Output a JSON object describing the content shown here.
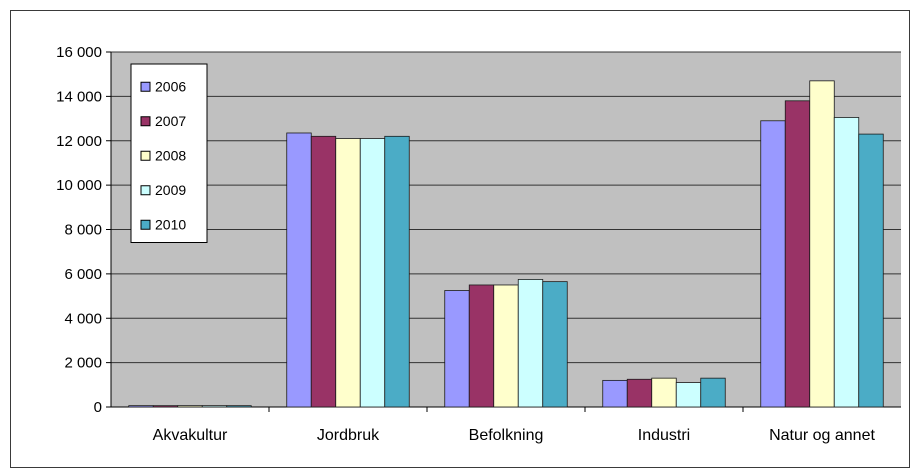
{
  "chart_data": {
    "type": "bar",
    "categories": [
      "Akvakultur",
      "Jordbruk",
      "Befolkning",
      "Industri",
      "Natur og annet"
    ],
    "series": [
      {
        "name": "2006",
        "values": [
          60,
          12350,
          5250,
          1200,
          12900
        ]
      },
      {
        "name": "2007",
        "values": [
          60,
          12200,
          5500,
          1250,
          13800
        ]
      },
      {
        "name": "2008",
        "values": [
          60,
          12100,
          5500,
          1300,
          14700
        ]
      },
      {
        "name": "2009",
        "values": [
          60,
          12100,
          5750,
          1100,
          13050
        ]
      },
      {
        "name": "2010",
        "values": [
          60,
          12200,
          5650,
          1300,
          12300
        ]
      }
    ],
    "yticks": [
      "0",
      "2 000",
      "4 000",
      "6 000",
      "8 000",
      "10 000",
      "12 000",
      "14 000",
      "16 000"
    ],
    "ylim": [
      0,
      16000
    ],
    "grid": true,
    "legend": "top-left",
    "title": "",
    "xlabel": "",
    "ylabel": ""
  },
  "colors": {
    "plot_bg": "#c0c0c0",
    "gridline": "#333333",
    "series": [
      "#9999ff",
      "#993366",
      "#ffffcc",
      "#ccffff",
      "#4bacc6"
    ],
    "bar_stroke": "#1a1a1a"
  }
}
